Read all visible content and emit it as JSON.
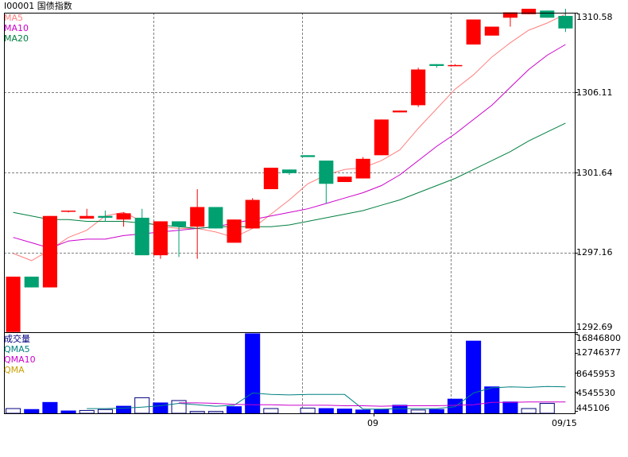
{
  "header": {
    "title": "I00001 国债指数"
  },
  "legend_price": [
    {
      "label": "MA5",
      "color": "#ff7f7f"
    },
    {
      "label": "MA10",
      "color": "#cc00cc"
    },
    {
      "label": "MA20",
      "color": "#007f3f"
    }
  ],
  "legend_volume": [
    {
      "label": "成交量",
      "color": "#000080"
    },
    {
      "label": "QMA5",
      "color": "#008080"
    },
    {
      "label": "QMA10",
      "color": "#cc00cc"
    },
    {
      "label": "QMA",
      "color": "#c8a000"
    }
  ],
  "price_axis_ticks": [
    "1310.58",
    "1306.11",
    "1301.64",
    "1297.16",
    "1292.69"
  ],
  "volume_axis_ticks": [
    "16846800",
    "12746377",
    "8645953",
    "4545530",
    "445106"
  ],
  "x_axis_labels": [
    "09",
    "09/15"
  ],
  "colors": {
    "up": "#ff0000",
    "down": "#00a070",
    "volume_up": "#0000ff",
    "volume_down": "#ffffff",
    "grid": "#808080",
    "border": "#000000"
  },
  "chart_data": [
    {
      "type": "candlestick",
      "title": "",
      "ylim": [
        1292.69,
        1310.58
      ],
      "y_ticks": [
        1310.58,
        1306.11,
        1301.64,
        1297.16,
        1292.69
      ],
      "candles": [
        {
          "open": 1292.7,
          "close": 1295.8,
          "high": 1295.8,
          "low": 1292.7
        },
        {
          "open": 1295.8,
          "close": 1295.2,
          "high": 1295.8,
          "low": 1295.2
        },
        {
          "open": 1295.2,
          "close": 1299.2,
          "high": 1299.2,
          "low": 1295.2
        },
        {
          "open": 1299.45,
          "close": 1299.5,
          "high": 1299.5,
          "low": 1299.4
        },
        {
          "open": 1299.05,
          "close": 1299.2,
          "high": 1299.6,
          "low": 1299.05
        },
        {
          "open": 1299.2,
          "close": 1299.1,
          "high": 1299.5,
          "low": 1298.9
        },
        {
          "open": 1299.0,
          "close": 1299.35,
          "high": 1299.4,
          "low": 1298.6
        },
        {
          "open": 1299.1,
          "close": 1297.0,
          "high": 1299.6,
          "low": 1297.0
        },
        {
          "open": 1297.0,
          "close": 1298.9,
          "high": 1298.9,
          "low": 1296.8
        },
        {
          "open": 1298.9,
          "close": 1298.6,
          "high": 1298.9,
          "low": 1296.9
        },
        {
          "open": 1298.6,
          "close": 1299.7,
          "high": 1300.7,
          "low": 1296.8
        },
        {
          "open": 1299.7,
          "close": 1298.5,
          "high": 1299.7,
          "low": 1298.5
        },
        {
          "open": 1297.7,
          "close": 1299.0,
          "high": 1299.0,
          "low": 1297.7
        },
        {
          "open": 1298.5,
          "close": 1300.1,
          "high": 1300.2,
          "low": 1298.5
        },
        {
          "open": 1300.7,
          "close": 1301.9,
          "high": 1301.9,
          "low": 1300.7
        },
        {
          "open": 1301.8,
          "close": 1301.6,
          "high": 1301.8,
          "low": 1301.5
        },
        {
          "open": 1302.6,
          "close": 1302.5,
          "high": 1302.6,
          "low": 1302.5
        },
        {
          "open": 1302.3,
          "close": 1301.0,
          "high": 1302.3,
          "low": 1299.9
        },
        {
          "open": 1301.1,
          "close": 1301.4,
          "high": 1301.4,
          "low": 1301.1
        },
        {
          "open": 1301.3,
          "close": 1302.4,
          "high": 1302.5,
          "low": 1301.3
        },
        {
          "open": 1302.6,
          "close": 1304.6,
          "high": 1304.6,
          "low": 1302.6
        },
        {
          "open": 1305.0,
          "close": 1305.1,
          "high": 1305.1,
          "low": 1305.0
        },
        {
          "open": 1305.4,
          "close": 1307.4,
          "high": 1307.5,
          "low": 1305.3
        },
        {
          "open": 1307.7,
          "close": 1307.6,
          "high": 1307.7,
          "low": 1307.5
        },
        {
          "open": 1307.65,
          "close": 1307.65,
          "high": 1307.7,
          "low": 1307.6
        },
        {
          "open": 1308.8,
          "close": 1310.2,
          "high": 1310.2,
          "low": 1308.8
        },
        {
          "open": 1309.3,
          "close": 1309.8,
          "high": 1309.8,
          "low": 1309.3
        },
        {
          "open": 1310.3,
          "close": 1310.6,
          "high": 1310.6,
          "low": 1309.8
        },
        {
          "open": 1310.5,
          "close": 1310.8,
          "high": 1310.8,
          "low": 1310.5
        },
        {
          "open": 1310.7,
          "close": 1310.3,
          "high": 1310.7,
          "low": 1310.3
        },
        {
          "open": 1310.4,
          "close": 1309.7,
          "high": 1310.8,
          "low": 1309.5
        }
      ],
      "series": [
        {
          "name": "MA5",
          "values": [
            1297.1,
            1296.7,
            1297.3,
            1298.0,
            1298.4,
            1299.2,
            1299.4,
            1298.9,
            1298.6,
            1298.5,
            1298.5,
            1298.3,
            1298.0,
            1298.5,
            1299.3,
            1300.1,
            1301.0,
            1301.5,
            1301.8,
            1301.9,
            1302.3,
            1302.9,
            1304.1,
            1305.2,
            1306.3,
            1307.1,
            1308.1,
            1308.9,
            1309.6,
            1310.0,
            1310.5
          ]
        },
        {
          "name": "MA10",
          "values": [
            1298.0,
            1297.7,
            1297.4,
            1297.8,
            1297.9,
            1297.9,
            1298.1,
            1298.2,
            1298.3,
            1298.4,
            1298.5,
            1298.6,
            1298.8,
            1299.0,
            1299.2,
            1299.4,
            1299.6,
            1299.9,
            1300.2,
            1300.5,
            1300.9,
            1301.5,
            1302.3,
            1303.1,
            1303.8,
            1304.6,
            1305.4,
            1306.4,
            1307.4,
            1308.2,
            1308.8
          ]
        },
        {
          "name": "MA20",
          "values": [
            1299.4,
            1299.2,
            1299.0,
            1299.0,
            1298.9,
            1298.9,
            1298.9,
            1298.8,
            1298.7,
            1298.6,
            1298.5,
            1298.6,
            1298.6,
            1298.6,
            1298.6,
            1298.7,
            1298.9,
            1299.1,
            1299.3,
            1299.5,
            1299.8,
            1300.1,
            1300.5,
            1300.9,
            1301.3,
            1301.8,
            1302.3,
            1302.8,
            1303.4,
            1303.9,
            1304.4
          ]
        }
      ]
    },
    {
      "type": "bar",
      "title": "成交量",
      "ylim": [
        0,
        16846800
      ],
      "y_ticks": [
        16846800,
        12746377,
        8645953,
        4545530,
        445106
      ],
      "values": [
        1000000,
        800000,
        2300000,
        500000,
        600000,
        800000,
        1500000,
        3300000,
        2200000,
        2700000,
        400000,
        400000,
        1400000,
        16846800,
        1000000,
        0,
        1100000,
        1000000,
        900000,
        700000,
        800000,
        1700000,
        700000,
        800000,
        3000000,
        15300000,
        5600000,
        2400000,
        1000000,
        2100000,
        0
      ],
      "rising": [
        false,
        true,
        true,
        true,
        false,
        false,
        true,
        false,
        true,
        false,
        false,
        false,
        true,
        true,
        false,
        false,
        false,
        true,
        true,
        true,
        true,
        true,
        false,
        true,
        true,
        true,
        true,
        true,
        false,
        false,
        false
      ],
      "series": [
        {
          "name": "QMA5",
          "values": [
            null,
            null,
            null,
            null,
            1000000,
            1000000,
            1100000,
            1300000,
            1600000,
            2100000,
            1800000,
            1500000,
            1700000,
            4300000,
            4000000,
            3900000,
            4000000,
            4000000,
            4000000,
            900000,
            900000,
            1000000,
            1000000,
            1000000,
            1400000,
            4300000,
            5400000,
            5600000,
            5500000,
            5700000,
            5600000
          ]
        },
        {
          "name": "QMA10",
          "values": [
            null,
            null,
            null,
            null,
            null,
            null,
            null,
            null,
            null,
            2200000,
            2200000,
            2100000,
            1900000,
            1800000,
            1800000,
            1700000,
            1700000,
            1700000,
            1600000,
            1600000,
            1500000,
            1600000,
            1600000,
            1600000,
            1700000,
            1800000,
            2300000,
            2300000,
            2400000,
            2400000,
            2400000
          ]
        }
      ]
    }
  ]
}
